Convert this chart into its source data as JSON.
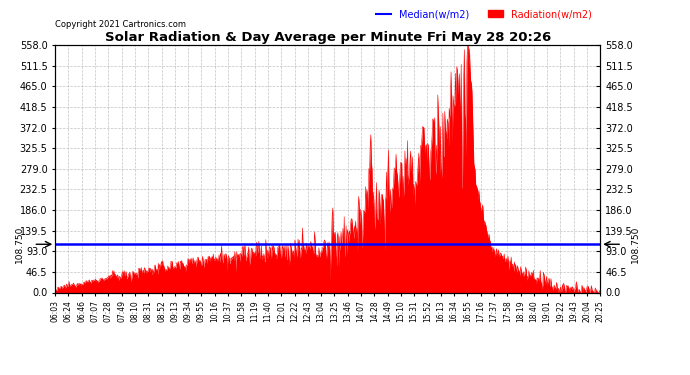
{
  "title": "Solar Radiation & Day Average per Minute Fri May 28 20:26",
  "copyright": "Copyright 2021 Cartronics.com",
  "legend_median": "Median(w/m2)",
  "legend_radiation": "Radiation(w/m2)",
  "median_value": 108.75,
  "y_min": 0.0,
  "y_max": 558.0,
  "y_ticks": [
    0.0,
    46.5,
    93.0,
    139.5,
    186.0,
    232.5,
    279.0,
    325.5,
    372.0,
    418.5,
    465.0,
    511.5,
    558.0
  ],
  "background_color": "#ffffff",
  "plot_bg_color": "#ffffff",
  "radiation_color": "#ff0000",
  "median_color": "#0000ff",
  "title_color": "#000000",
  "grid_color": "#cccccc",
  "x_labels": [
    "06:03",
    "06:24",
    "06:46",
    "07:07",
    "07:28",
    "07:49",
    "08:10",
    "08:31",
    "08:52",
    "09:13",
    "09:34",
    "09:55",
    "10:16",
    "10:37",
    "10:58",
    "11:19",
    "11:40",
    "12:01",
    "12:22",
    "12:43",
    "13:04",
    "13:25",
    "13:46",
    "14:07",
    "14:28",
    "14:49",
    "15:10",
    "15:31",
    "15:52",
    "16:13",
    "16:34",
    "16:55",
    "17:16",
    "17:37",
    "17:58",
    "18:19",
    "18:40",
    "19:01",
    "19:22",
    "19:43",
    "20:04",
    "20:25"
  ],
  "num_points": 863
}
